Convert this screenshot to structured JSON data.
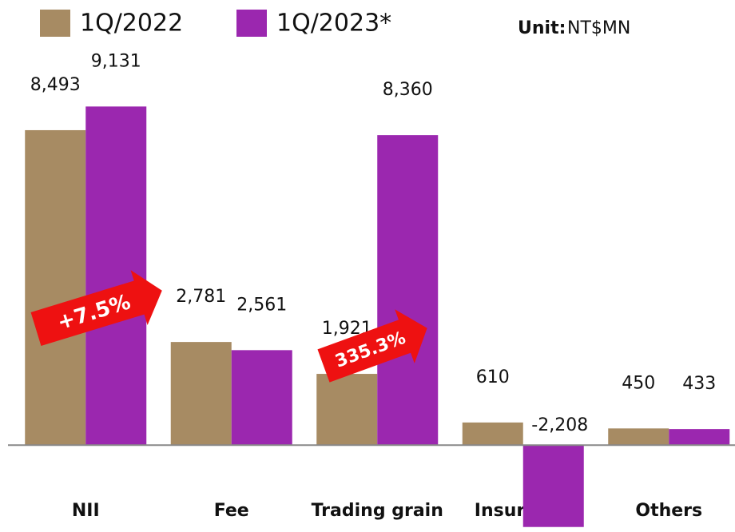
{
  "chart_data": {
    "type": "bar",
    "unit_label": "Unit:",
    "unit": "NT$MN",
    "categories": [
      "NII",
      "Fee",
      "Trading grain",
      "Insurance",
      "Others"
    ],
    "series": [
      {
        "name": "1Q/2022",
        "color": "#a78b63",
        "values": [
          8493,
          2781,
          1921,
          610,
          450
        ],
        "value_labels": [
          "8,493",
          "2,781",
          "1,921",
          "610",
          "450"
        ]
      },
      {
        "name": "1Q/2023*",
        "color": "#9b27af",
        "values": [
          9131,
          2561,
          8360,
          -2208,
          433
        ],
        "value_labels": [
          "9,131",
          "2,561",
          "8,360",
          "-2,208",
          "433"
        ]
      }
    ],
    "annotations": [
      "+7.5%",
      "335.3%"
    ],
    "ylim": [
      -2300,
      10000
    ],
    "grid": false
  }
}
